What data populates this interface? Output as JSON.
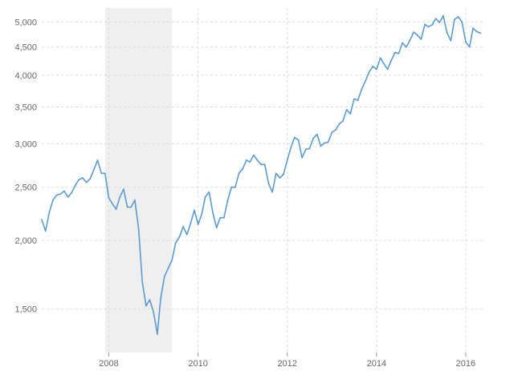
{
  "chart_data": {
    "type": "line",
    "title": "",
    "xlabel": "",
    "ylabel": "",
    "y_scale": "log",
    "ylim": [
      1250,
      5300
    ],
    "xlim": [
      "2006-07-01",
      "2016-06-01"
    ],
    "grid": true,
    "legend": "none",
    "line_color": "#5b9bd5",
    "recession_color": "#efefef",
    "recession": {
      "start": "2007-12-01",
      "end": "2009-06-01"
    },
    "y_ticks": [
      {
        "value": 1500,
        "label": "1,500"
      },
      {
        "value": 2000,
        "label": "2,000"
      },
      {
        "value": 2500,
        "label": "2,500"
      },
      {
        "value": 3000,
        "label": "3,000"
      },
      {
        "value": 3500,
        "label": "3,500"
      },
      {
        "value": 4000,
        "label": "4,000"
      },
      {
        "value": 4500,
        "label": "4,500"
      },
      {
        "value": 5000,
        "label": "5,000"
      }
    ],
    "x_ticks": [
      {
        "value": "2008-01-01",
        "label": "2008"
      },
      {
        "value": "2010-01-01",
        "label": "2010"
      },
      {
        "value": "2012-01-01",
        "label": "2012"
      },
      {
        "value": "2014-01-01",
        "label": "2014"
      },
      {
        "value": "2016-01-01",
        "label": "2016"
      }
    ],
    "series": [
      {
        "x": [
          "2006-07-01",
          "2006-08-01",
          "2006-09-01",
          "2006-10-01",
          "2006-11-01",
          "2006-12-01",
          "2007-01-01",
          "2007-02-01",
          "2007-03-01",
          "2007-04-01",
          "2007-05-01",
          "2007-06-01",
          "2007-07-01",
          "2007-08-01",
          "2007-09-01",
          "2007-10-01",
          "2007-11-01",
          "2007-12-01",
          "2008-01-01",
          "2008-02-01",
          "2008-03-01",
          "2008-04-01",
          "2008-05-01",
          "2008-06-01",
          "2008-07-01",
          "2008-08-01",
          "2008-09-01",
          "2008-10-01",
          "2008-11-01",
          "2008-12-01",
          "2009-01-01",
          "2009-02-01",
          "2009-03-01",
          "2009-04-01",
          "2009-05-01",
          "2009-06-01",
          "2009-07-01",
          "2009-08-01",
          "2009-09-01",
          "2009-10-01",
          "2009-11-01",
          "2009-12-01",
          "2010-01-01",
          "2010-02-01",
          "2010-03-01",
          "2010-04-01",
          "2010-05-01",
          "2010-06-01",
          "2010-07-01",
          "2010-08-01",
          "2010-09-01",
          "2010-10-01",
          "2010-11-01",
          "2010-12-01",
          "2011-01-01",
          "2011-02-01",
          "2011-03-01",
          "2011-04-01",
          "2011-05-01",
          "2011-06-01",
          "2011-07-01",
          "2011-08-01",
          "2011-09-01",
          "2011-10-01",
          "2011-11-01",
          "2011-12-01",
          "2012-01-01",
          "2012-02-01",
          "2012-03-01",
          "2012-04-01",
          "2012-05-01",
          "2012-06-01",
          "2012-07-01",
          "2012-08-01",
          "2012-09-01",
          "2012-10-01",
          "2012-11-01",
          "2012-12-01",
          "2013-01-01",
          "2013-02-01",
          "2013-03-01",
          "2013-04-01",
          "2013-05-01",
          "2013-06-01",
          "2013-07-01",
          "2013-08-01",
          "2013-09-01",
          "2013-10-01",
          "2013-11-01",
          "2013-12-01",
          "2014-01-01",
          "2014-02-01",
          "2014-03-01",
          "2014-04-01",
          "2014-05-01",
          "2014-06-01",
          "2014-07-01",
          "2014-08-01",
          "2014-09-01",
          "2014-10-01",
          "2014-11-01",
          "2014-12-01",
          "2015-01-01",
          "2015-02-01",
          "2015-03-01",
          "2015-04-01",
          "2015-05-01",
          "2015-06-01",
          "2015-07-01",
          "2015-08-01",
          "2015-09-01",
          "2015-10-01",
          "2015-11-01",
          "2015-12-01",
          "2016-01-01",
          "2016-02-01",
          "2016-03-01",
          "2016-04-01",
          "2016-05-01"
        ],
        "values": [
          2180,
          2080,
          2250,
          2370,
          2420,
          2430,
          2460,
          2400,
          2440,
          2520,
          2580,
          2600,
          2550,
          2590,
          2690,
          2800,
          2650,
          2650,
          2390,
          2330,
          2280,
          2400,
          2480,
          2300,
          2300,
          2370,
          2100,
          1680,
          1520,
          1560,
          1480,
          1350,
          1570,
          1720,
          1780,
          1840,
          1980,
          2030,
          2120,
          2050,
          2150,
          2270,
          2140,
          2240,
          2400,
          2450,
          2250,
          2110,
          2200,
          2200,
          2370,
          2500,
          2500,
          2650,
          2700,
          2800,
          2780,
          2860,
          2800,
          2750,
          2750,
          2540,
          2450,
          2650,
          2600,
          2640,
          2800,
          2960,
          3080,
          3050,
          2830,
          2930,
          2940,
          3070,
          3120,
          2970,
          3010,
          3020,
          3150,
          3180,
          3260,
          3300,
          3460,
          3400,
          3620,
          3600,
          3770,
          3900,
          4050,
          4150,
          4100,
          4300,
          4200,
          4100,
          4250,
          4400,
          4380,
          4580,
          4500,
          4630,
          4790,
          4730,
          4650,
          4950,
          4900,
          4940,
          5070,
          4990,
          5130,
          4780,
          4620,
          5050,
          5110,
          5000,
          4600,
          4500,
          4870,
          4800,
          4770
        ]
      }
    ]
  }
}
